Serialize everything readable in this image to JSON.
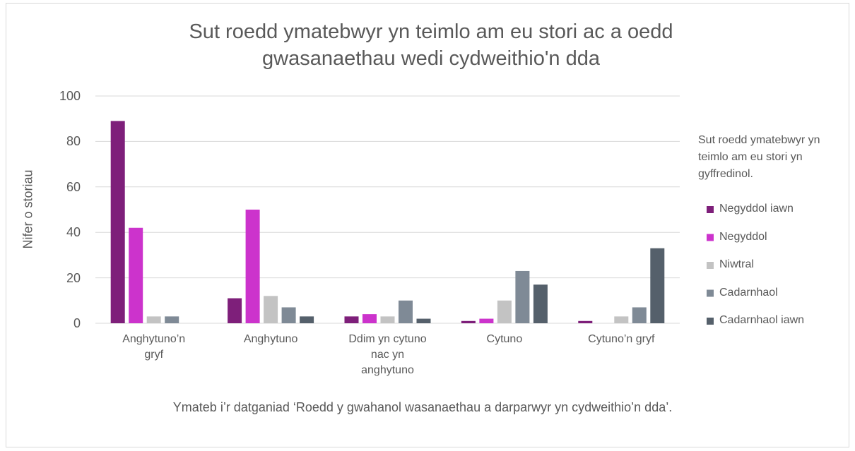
{
  "chart_data": {
    "type": "bar",
    "title": "Sut roedd ymatebwyr yn teimlo am eu stori ac a oedd gwasanaethau wedi cydweithio'n dda",
    "x_label": "Ymateb i’r datganiad ‘Roedd y gwahanol wasanaethau a darparwyr yn cydweithio’n dda’.",
    "y_label": "Nifer o storiau",
    "legend_title": "Sut roedd ymatebwyr yn teimlo am eu stori yn gyffredinol.",
    "legend": "right",
    "grid": true,
    "categories": [
      "Anghytuno’n gryf",
      "Anghytuno",
      "Ddim yn cytuno nac yn anghytuno",
      "Cytuno",
      "Cytuno’n gryf"
    ],
    "series": [
      {
        "name": "Negyddol iawn",
        "color": "#7e1f7a",
        "values": [
          89,
          11,
          3,
          1,
          1
        ]
      },
      {
        "name": "Negyddol",
        "color": "#cc33cc",
        "values": [
          42,
          50,
          4,
          2,
          0
        ]
      },
      {
        "name": "Niwtral",
        "color": "#c3c3c3",
        "values": [
          3,
          12,
          3,
          10,
          3
        ]
      },
      {
        "name": "Cadarnhaol",
        "color": "#7f8a96",
        "values": [
          3,
          7,
          10,
          23,
          7
        ]
      },
      {
        "name": "Cadarnhaol iawn",
        "color": "#55606b",
        "values": [
          0,
          3,
          2,
          17,
          33
        ]
      }
    ],
    "ylim": [
      0,
      100
    ],
    "yticks": [
      0,
      20,
      40,
      60,
      80,
      100
    ]
  }
}
